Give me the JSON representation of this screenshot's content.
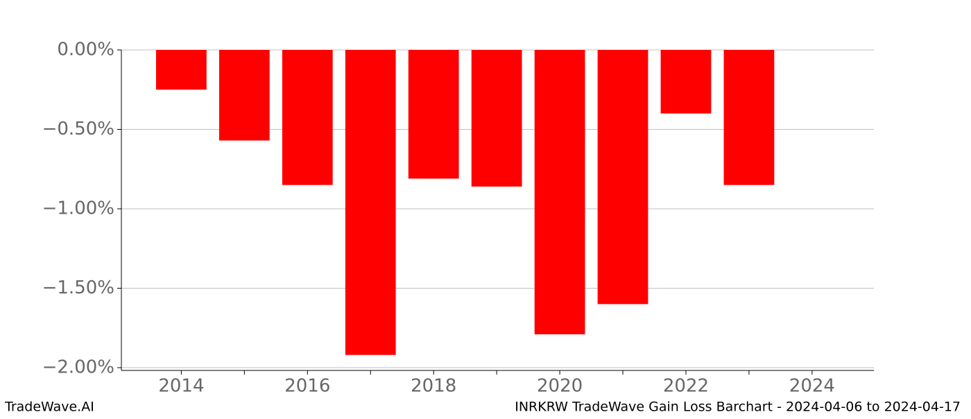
{
  "chart_data": {
    "type": "bar",
    "x": [
      2014,
      2015,
      2016,
      2017,
      2018,
      2019,
      2020,
      2021,
      2022,
      2023
    ],
    "values": [
      -0.25,
      -0.57,
      -0.85,
      -1.92,
      -0.81,
      -0.86,
      -1.79,
      -1.6,
      -0.4,
      -0.85
    ],
    "color": "#ff0000",
    "xlim": [
      2013.05,
      2024.98
    ],
    "xticks": [
      2014,
      2016,
      2018,
      2020,
      2022,
      2024
    ],
    "xminor_ticks": [
      2015,
      2017,
      2019,
      2021,
      2023
    ],
    "ylim": [
      -2.0175,
      0
    ],
    "yticks": [
      {
        "value": 0,
        "label": "0.00%"
      },
      {
        "value": -0.5,
        "label": "−0.50%"
      },
      {
        "value": -1,
        "label": "−1.00%"
      },
      {
        "value": -1.5,
        "label": "−1.50%"
      },
      {
        "value": -2,
        "label": "−2.00%"
      }
    ],
    "grid": true,
    "footer_left": "TradeWave.AI",
    "footer_right": "INRKRW TradeWave Gain Loss Barchart - 2024-04-06 to 2024-04-17"
  }
}
